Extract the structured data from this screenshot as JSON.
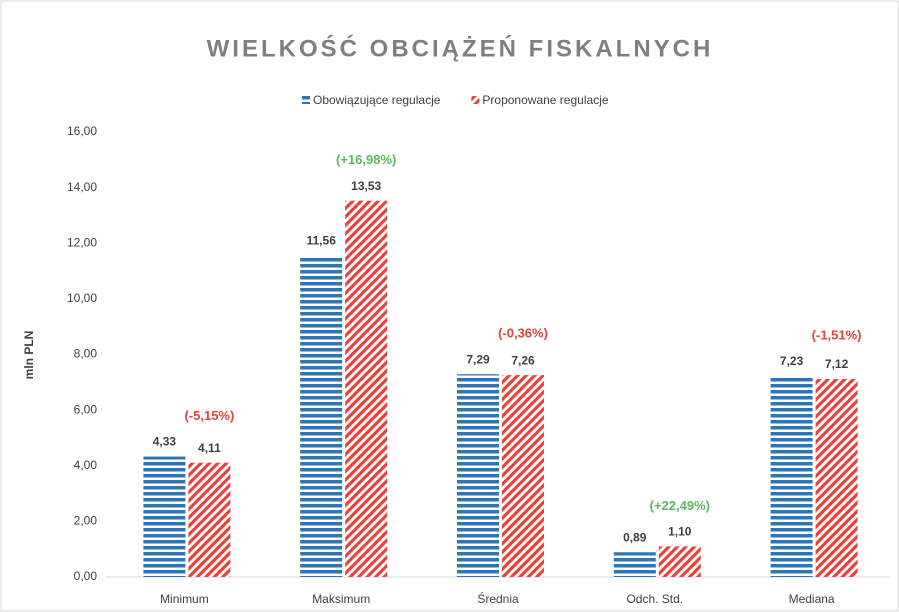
{
  "chart_data": {
    "type": "bar",
    "title": "WIELKOŚĆ OBCIĄŻEŃ FISKALNYCH",
    "y_label": "mln PLN",
    "categories": [
      "Minimum",
      "Maksimum",
      "Średnia",
      "Odch. Std.",
      "Mediana"
    ],
    "series": [
      {
        "name": "Obowiązujące regulacje",
        "color": "#2e75b6",
        "pattern": "horizontal",
        "values": [
          4.33,
          11.56,
          7.29,
          0.89,
          7.23
        ],
        "value_labels": [
          "4,33",
          "11,56",
          "7,29",
          "0,89",
          "7,23"
        ]
      },
      {
        "name": "Proponowane regulacje",
        "color": "#e8413a",
        "pattern": "diagonal",
        "values": [
          4.11,
          13.53,
          7.26,
          1.1,
          7.12
        ],
        "value_labels": [
          "4,11",
          "13,53",
          "7,26",
          "1,10",
          "7,12"
        ]
      }
    ],
    "annotations": [
      {
        "text": "(-5,15%)",
        "color": "#e8413a"
      },
      {
        "text": "(+16,98%)",
        "color": "#5cb85c"
      },
      {
        "text": "(-0,36%)",
        "color": "#e8413a"
      },
      {
        "text": "(+22,49%)",
        "color": "#5cb85c"
      },
      {
        "text": "(-1,51%)",
        "color": "#e8413a"
      }
    ],
    "ylim": [
      0,
      16
    ],
    "yticks": [
      {
        "value": 0,
        "label": "0,00"
      },
      {
        "value": 2,
        "label": "2,00"
      },
      {
        "value": 4,
        "label": "4,00"
      },
      {
        "value": 6,
        "label": "6,00"
      },
      {
        "value": 8,
        "label": "8,00"
      },
      {
        "value": 10,
        "label": "10,00"
      },
      {
        "value": 12,
        "label": "12,00"
      },
      {
        "value": 14,
        "label": "14,00"
      },
      {
        "value": 16,
        "label": "16,00"
      }
    ],
    "grid": false,
    "legend": "top"
  }
}
